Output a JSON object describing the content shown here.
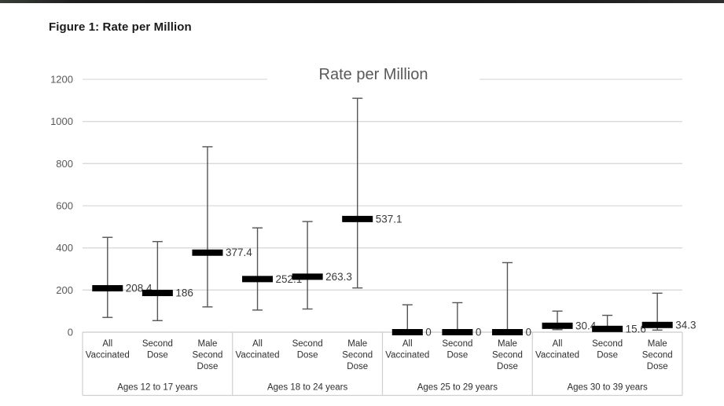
{
  "page": {
    "figure_caption": "Figure 1: Rate per Million"
  },
  "chart_data": {
    "type": "errorbar",
    "title": "Rate per Million",
    "xlabel": "",
    "ylabel": "",
    "ylim": [
      0,
      1200
    ],
    "yticks": [
      0,
      200,
      400,
      600,
      800,
      1000,
      1200
    ],
    "grid": true,
    "legend": "none",
    "categories_per_group": [
      "All Vaccinated",
      "Second Dose",
      "Male Second Dose"
    ],
    "groups": [
      {
        "label": "Ages 12 to 17 years",
        "points": [
          {
            "category": "All Vaccinated",
            "value": 208.4,
            "label": "208.4",
            "ci_low": 70,
            "ci_high": 450
          },
          {
            "category": "Second Dose",
            "value": 186,
            "label": "186",
            "ci_low": 55,
            "ci_high": 430
          },
          {
            "category": "Male Second Dose",
            "value": 377.4,
            "label": "377.4",
            "ci_low": 120,
            "ci_high": 880
          }
        ]
      },
      {
        "label": "Ages 18 to 24 years",
        "points": [
          {
            "category": "All Vaccinated",
            "value": 252.1,
            "label": "252.1",
            "ci_low": 105,
            "ci_high": 495
          },
          {
            "category": "Second Dose",
            "value": 263.3,
            "label": "263.3",
            "ci_low": 110,
            "ci_high": 525
          },
          {
            "category": "Male Second Dose",
            "value": 537.1,
            "label": "537.1",
            "ci_low": 210,
            "ci_high": 1110
          }
        ]
      },
      {
        "label": "Ages 25 to 29 years",
        "points": [
          {
            "category": "All Vaccinated",
            "value": 0,
            "label": "0",
            "ci_low": 0,
            "ci_high": 130
          },
          {
            "category": "Second Dose",
            "value": 0,
            "label": "0",
            "ci_low": 0,
            "ci_high": 140
          },
          {
            "category": "Male Second Dose",
            "value": 0,
            "label": "0",
            "ci_low": 0,
            "ci_high": 330
          }
        ]
      },
      {
        "label": "Ages 30 to 39 years",
        "points": [
          {
            "category": "All Vaccinated",
            "value": 30.4,
            "label": "30.4",
            "ci_low": 12,
            "ci_high": 100
          },
          {
            "category": "Second Dose",
            "value": 15.6,
            "label": "15.6",
            "ci_low": 5,
            "ci_high": 80
          },
          {
            "category": "Male Second Dose",
            "value": 34.3,
            "label": "34.3",
            "ci_low": 10,
            "ci_high": 185
          }
        ]
      }
    ],
    "colors": {
      "marker": "#000000",
      "whisker": "#555555",
      "gridline": "#d9d9d9",
      "axis_line": "#c9c9c9",
      "label_area_border": "#cfcfcf",
      "title": "#595959",
      "tick_label": "#595959",
      "category_label": "#2e2e2e",
      "group_label": "#2e2e2e",
      "data_label": "#3a3a3a",
      "top_bar": "#1f1f1f"
    }
  }
}
